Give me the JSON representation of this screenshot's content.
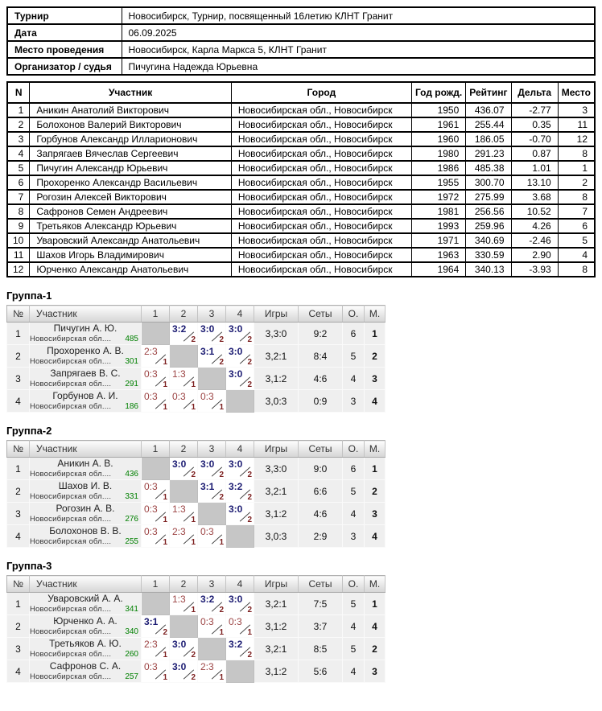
{
  "info": {
    "rows": [
      {
        "label": "Турнир",
        "value": "Новосибирск, Турнир, посвященный 16летию КЛНТ Гранит"
      },
      {
        "label": "Дата",
        "value": "06.09.2025"
      },
      {
        "label": "Место проведения",
        "value": "Новосибирск, Карла Маркса 5, КЛНТ Гранит"
      },
      {
        "label": "Организатор / судья",
        "value": "Пичугина Надежда Юрьевна"
      }
    ]
  },
  "participants": {
    "headers": [
      "N",
      "Участник",
      "Город",
      "Год рожд.",
      "Рейтинг",
      "Дельта",
      "Место"
    ],
    "rows": [
      [
        "1",
        "Аникин Анатолий Викторович",
        "Новосибирская обл., Новосибирск",
        "1950",
        "436.07",
        "-2.77",
        "3"
      ],
      [
        "2",
        "Болохонов Валерий Викторович",
        "Новосибирская обл., Новосибирск",
        "1961",
        "255.44",
        "0.35",
        "11"
      ],
      [
        "3",
        "Горбунов Александр Илларионович",
        "Новосибирская обл., Новосибирск",
        "1960",
        "186.05",
        "-0.70",
        "12"
      ],
      [
        "4",
        "Запрягаев Вячеслав Сергеевич",
        "Новосибирская обл., Новосибирск",
        "1980",
        "291.23",
        "0.87",
        "8"
      ],
      [
        "5",
        "Пичугин Александр Юрьевич",
        "Новосибирская обл., Новосибирск",
        "1986",
        "485.38",
        "1.01",
        "1"
      ],
      [
        "6",
        "Прохоренко Александр Васильевич",
        "Новосибирская обл., Новосибирск",
        "1955",
        "300.70",
        "13.10",
        "2"
      ],
      [
        "7",
        "Рогозин Алексей Викторович",
        "Новосибирская обл., Новосибирск",
        "1972",
        "275.99",
        "3.68",
        "8"
      ],
      [
        "8",
        "Сафронов Семен Андреевич",
        "Новосибирская обл., Новосибирск",
        "1981",
        "256.56",
        "10.52",
        "7"
      ],
      [
        "9",
        "Третьяков Александр Юрьевич",
        "Новосибирская обл., Новосибирск",
        "1993",
        "259.96",
        "4.26",
        "6"
      ],
      [
        "10",
        "Уваровский Александр Анатольевич",
        "Новосибирская обл., Новосибирск",
        "1971",
        "340.69",
        "-2.46",
        "5"
      ],
      [
        "11",
        "Шахов Игорь Владимирович",
        "Новосибирская обл., Новосибирск",
        "1963",
        "330.59",
        "2.90",
        "4"
      ],
      [
        "12",
        "Юрченко Александр Анатольевич",
        "Новосибирская обл., Новосибирск",
        "1964",
        "340.13",
        "-3.93",
        "8"
      ]
    ]
  },
  "group_headers": [
    "№",
    "Участник",
    "1",
    "2",
    "3",
    "4",
    "Игры",
    "Сеты",
    "О.",
    "М."
  ],
  "groups": [
    {
      "title": "Группа-1",
      "rows": [
        {
          "num": "1",
          "name": "Пичугин А. Ю.",
          "region": "Новосибирская обл....",
          "rating": "485",
          "cells": [
            {
              "self": true
            },
            {
              "s": "3:2",
              "p": "2",
              "w": true
            },
            {
              "s": "3:0",
              "p": "2",
              "w": true
            },
            {
              "s": "3:0",
              "p": "2",
              "w": true
            }
          ],
          "games": "3,3:0",
          "sets": "9:2",
          "points": "6",
          "place": "1"
        },
        {
          "num": "2",
          "name": "Прохоренко А. В.",
          "region": "Новосибирская обл....",
          "rating": "301",
          "cells": [
            {
              "s": "2:3",
              "p": "1",
              "w": false
            },
            {
              "self": true
            },
            {
              "s": "3:1",
              "p": "2",
              "w": true
            },
            {
              "s": "3:0",
              "p": "2",
              "w": true
            }
          ],
          "games": "3,2:1",
          "sets": "8:4",
          "points": "5",
          "place": "2"
        },
        {
          "num": "3",
          "name": "Запрягаев В. С.",
          "region": "Новосибирская обл....",
          "rating": "291",
          "cells": [
            {
              "s": "0:3",
              "p": "1",
              "w": false
            },
            {
              "s": "1:3",
              "p": "1",
              "w": false
            },
            {
              "self": true
            },
            {
              "s": "3:0",
              "p": "2",
              "w": true
            }
          ],
          "games": "3,1:2",
          "sets": "4:6",
          "points": "4",
          "place": "3"
        },
        {
          "num": "4",
          "name": "Горбунов А. И.",
          "region": "Новосибирская обл....",
          "rating": "186",
          "cells": [
            {
              "s": "0:3",
              "p": "1",
              "w": false
            },
            {
              "s": "0:3",
              "p": "1",
              "w": false
            },
            {
              "s": "0:3",
              "p": "1",
              "w": false
            },
            {
              "self": true
            }
          ],
          "games": "3,0:3",
          "sets": "0:9",
          "points": "3",
          "place": "4"
        }
      ]
    },
    {
      "title": "Группа-2",
      "rows": [
        {
          "num": "1",
          "name": "Аникин А. В.",
          "region": "Новосибирская обл....",
          "rating": "436",
          "cells": [
            {
              "self": true
            },
            {
              "s": "3:0",
              "p": "2",
              "w": true
            },
            {
              "s": "3:0",
              "p": "2",
              "w": true
            },
            {
              "s": "3:0",
              "p": "2",
              "w": true
            }
          ],
          "games": "3,3:0",
          "sets": "9:0",
          "points": "6",
          "place": "1"
        },
        {
          "num": "2",
          "name": "Шахов И. В.",
          "region": "Новосибирская обл....",
          "rating": "331",
          "cells": [
            {
              "s": "0:3",
              "p": "1",
              "w": false
            },
            {
              "self": true
            },
            {
              "s": "3:1",
              "p": "2",
              "w": true
            },
            {
              "s": "3:2",
              "p": "2",
              "w": true
            }
          ],
          "games": "3,2:1",
          "sets": "6:6",
          "points": "5",
          "place": "2"
        },
        {
          "num": "3",
          "name": "Рогозин А. В.",
          "region": "Новосибирская обл....",
          "rating": "276",
          "cells": [
            {
              "s": "0:3",
              "p": "1",
              "w": false
            },
            {
              "s": "1:3",
              "p": "1",
              "w": false
            },
            {
              "self": true
            },
            {
              "s": "3:0",
              "p": "2",
              "w": true
            }
          ],
          "games": "3,1:2",
          "sets": "4:6",
          "points": "4",
          "place": "3"
        },
        {
          "num": "4",
          "name": "Болохонов В. В.",
          "region": "Новосибирская обл....",
          "rating": "255",
          "cells": [
            {
              "s": "0:3",
              "p": "1",
              "w": false
            },
            {
              "s": "2:3",
              "p": "1",
              "w": false
            },
            {
              "s": "0:3",
              "p": "1",
              "w": false
            },
            {
              "self": true
            }
          ],
          "games": "3,0:3",
          "sets": "2:9",
          "points": "3",
          "place": "4"
        }
      ]
    },
    {
      "title": "Группа-3",
      "rows": [
        {
          "num": "1",
          "name": "Уваровский А. А.",
          "region": "Новосибирская обл....",
          "rating": "341",
          "cells": [
            {
              "self": true
            },
            {
              "s": "1:3",
              "p": "1",
              "w": false
            },
            {
              "s": "3:2",
              "p": "2",
              "w": true
            },
            {
              "s": "3:0",
              "p": "2",
              "w": true
            }
          ],
          "games": "3,2:1",
          "sets": "7:5",
          "points": "5",
          "place": "1"
        },
        {
          "num": "2",
          "name": "Юрченко А. А.",
          "region": "Новосибирская обл....",
          "rating": "340",
          "cells": [
            {
              "s": "3:1",
              "p": "2",
              "w": true
            },
            {
              "self": true
            },
            {
              "s": "0:3",
              "p": "1",
              "w": false
            },
            {
              "s": "0:3",
              "p": "1",
              "w": false
            }
          ],
          "games": "3,1:2",
          "sets": "3:7",
          "points": "4",
          "place": "4"
        },
        {
          "num": "3",
          "name": "Третьяков А. Ю.",
          "region": "Новосибирская обл....",
          "rating": "260",
          "cells": [
            {
              "s": "2:3",
              "p": "1",
              "w": false
            },
            {
              "s": "3:0",
              "p": "2",
              "w": true
            },
            {
              "self": true
            },
            {
              "s": "3:2",
              "p": "2",
              "w": true
            }
          ],
          "games": "3,2:1",
          "sets": "8:5",
          "points": "5",
          "place": "2"
        },
        {
          "num": "4",
          "name": "Сафронов С. А.",
          "region": "Новосибирская обл....",
          "rating": "257",
          "cells": [
            {
              "s": "0:3",
              "p": "1",
              "w": false
            },
            {
              "s": "3:0",
              "p": "2",
              "w": true
            },
            {
              "s": "2:3",
              "p": "1",
              "w": false
            },
            {
              "self": true
            }
          ],
          "games": "3,1:2",
          "sets": "5:6",
          "points": "4",
          "place": "3"
        }
      ]
    }
  ],
  "colors": {
    "win_score_navy": "#1b1b72",
    "loss_score_red": "#9c4343",
    "points_maroon": "#7c1f1f",
    "rating_green": "#008000",
    "place_navy": "#1b1b72",
    "self_cell_gray": "#c6c6c6",
    "group_row_gray": "#efefef",
    "table_border_black": "#000000"
  }
}
